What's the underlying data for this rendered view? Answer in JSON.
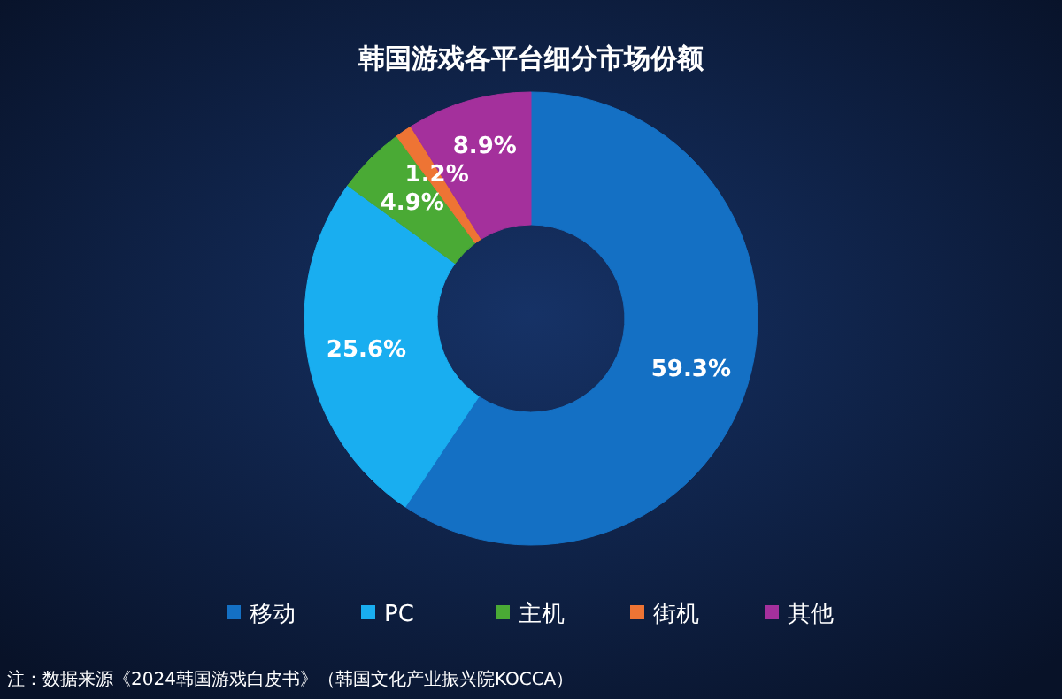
{
  "chart_data": {
    "type": "donut",
    "title": "韩国游戏各平台细分市场份额",
    "categories": [
      "移动",
      "PC",
      "主机",
      "街机",
      "其他"
    ],
    "values": [
      59.3,
      25.6,
      4.9,
      1.2,
      8.9
    ],
    "value_labels": [
      "59.3%",
      "25.6%",
      "4.9%",
      "1.2%",
      "8.9%"
    ],
    "colors": [
      "#1470c4",
      "#19aef0",
      "#4aaa35",
      "#ee7434",
      "#a4309c"
    ],
    "legend": "bottom",
    "annotations": [
      "注：数据来源《2024韩国游戏白皮书》（韩国文化产业振兴院KOCCA）"
    ]
  }
}
